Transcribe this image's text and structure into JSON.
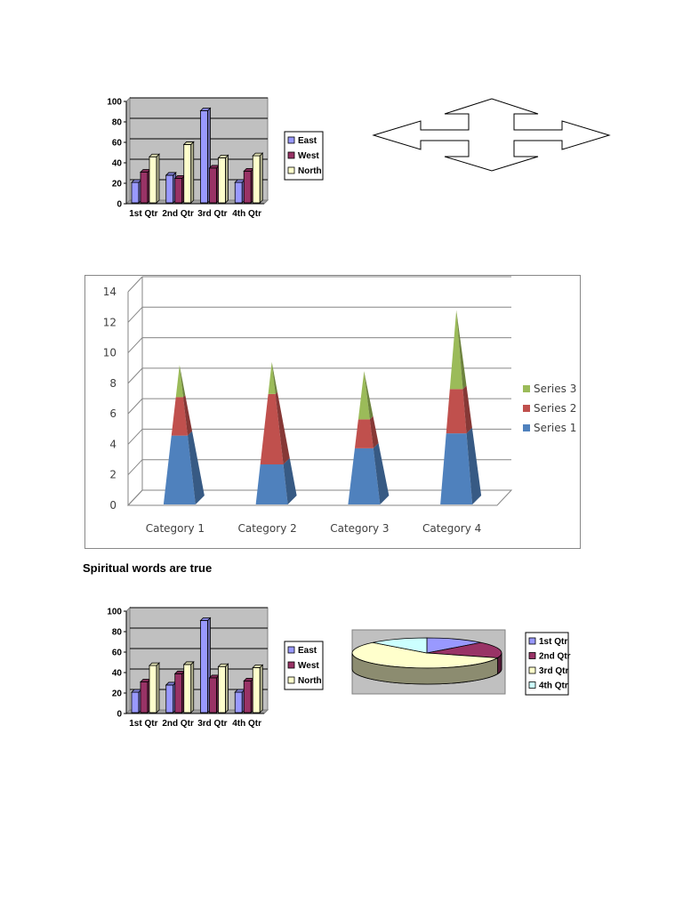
{
  "caption": "Spiritual words are true",
  "colors": {
    "east": "#9999ff",
    "west": "#993366",
    "north": "#ffffcc",
    "series1": "#4f81bd",
    "series2": "#c0504d",
    "series3": "#9bbb59",
    "q1": "#9999ff",
    "q2": "#993366",
    "q3": "#ffffcc",
    "q4": "#ccffff",
    "plot_bg": "#c0c0c0"
  },
  "arrow_shape": {
    "icon": "four-way-arrow-icon"
  },
  "chart_data": [
    {
      "type": "bar",
      "categories": [
        "1st Qtr",
        "2nd Qtr",
        "3rd Qtr",
        "4th Qtr"
      ],
      "series": [
        {
          "name": "East",
          "values": [
            20,
            27,
            90,
            20
          ]
        },
        {
          "name": "West",
          "values": [
            30,
            24,
            34,
            31
          ]
        },
        {
          "name": "North",
          "values": [
            45,
            57,
            44,
            46
          ]
        }
      ],
      "yticks": [
        "0",
        "20",
        "40",
        "60",
        "80",
        "100"
      ],
      "ylim": [
        0,
        100
      ],
      "grid": true,
      "legend": "right"
    },
    {
      "type": "bar",
      "stacked": true,
      "categories": [
        "Category 1",
        "Category 2",
        "Category 3",
        "Category 4"
      ],
      "series": [
        {
          "name": "Series 1",
          "values": [
            4.3,
            2.5,
            3.5,
            4.5
          ]
        },
        {
          "name": "Series 2",
          "values": [
            2.4,
            4.4,
            1.8,
            2.8
          ]
        },
        {
          "name": "Series 3",
          "values": [
            2.0,
            2.0,
            3.0,
            5.0
          ]
        }
      ],
      "yticks": [
        "0",
        "2",
        "4",
        "6",
        "8",
        "10",
        "12",
        "14"
      ],
      "ylim": [
        0,
        14
      ],
      "grid": true,
      "legend": "right"
    },
    {
      "type": "bar",
      "categories": [
        "1st Qtr",
        "2nd Qtr",
        "3rd Qtr",
        "4th Qtr"
      ],
      "series": [
        {
          "name": "East",
          "values": [
            20,
            27,
            90,
            20
          ]
        },
        {
          "name": "West",
          "values": [
            30,
            38,
            34,
            31
          ]
        },
        {
          "name": "North",
          "values": [
            46,
            47,
            45,
            44
          ]
        }
      ],
      "yticks": [
        "0",
        "20",
        "40",
        "60",
        "80",
        "100"
      ],
      "ylim": [
        0,
        100
      ],
      "grid": true,
      "legend": "right"
    },
    {
      "type": "pie",
      "labels": [
        "1st Qtr",
        "2nd Qtr",
        "3rd Qtr",
        "4th Qtr"
      ],
      "values": [
        20.4,
        27.4,
        90,
        20.4
      ],
      "legend": "right"
    }
  ]
}
